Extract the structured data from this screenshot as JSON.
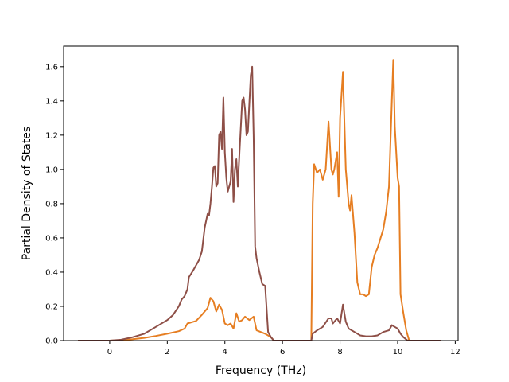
{
  "chart_data": {
    "type": "line",
    "title": "",
    "xlabel": "Frequency (THz)",
    "ylabel": "Partial Density of States",
    "xlim": [
      -1.6,
      12.1
    ],
    "ylim": [
      0.0,
      1.72
    ],
    "xticks": [
      0,
      2,
      4,
      6,
      8,
      10,
      12
    ],
    "yticks": [
      0.0,
      0.2,
      0.4,
      0.6,
      0.8,
      1.0,
      1.2,
      1.4,
      1.6
    ],
    "grid": false,
    "legend": "none",
    "series": [
      {
        "color": "#e67e22",
        "points": [
          [
            -1.1,
            0
          ],
          [
            0,
            0
          ],
          [
            0.4,
            0.003
          ],
          [
            0.8,
            0.008
          ],
          [
            1.2,
            0.016
          ],
          [
            1.6,
            0.027
          ],
          [
            2.0,
            0.04
          ],
          [
            2.4,
            0.055
          ],
          [
            2.6,
            0.07
          ],
          [
            2.7,
            0.1
          ],
          [
            3.0,
            0.115
          ],
          [
            3.2,
            0.15
          ],
          [
            3.4,
            0.19
          ],
          [
            3.5,
            0.25
          ],
          [
            3.6,
            0.23
          ],
          [
            3.7,
            0.17
          ],
          [
            3.8,
            0.21
          ],
          [
            3.9,
            0.18
          ],
          [
            4.0,
            0.1
          ],
          [
            4.1,
            0.09
          ],
          [
            4.2,
            0.1
          ],
          [
            4.3,
            0.07
          ],
          [
            4.4,
            0.16
          ],
          [
            4.5,
            0.11
          ],
          [
            4.6,
            0.12
          ],
          [
            4.7,
            0.14
          ],
          [
            4.85,
            0.12
          ],
          [
            5.0,
            0.14
          ],
          [
            5.1,
            0.06
          ],
          [
            5.4,
            0.04
          ],
          [
            5.6,
            0.02
          ],
          [
            5.7,
            0.0
          ],
          [
            5.9,
            0.0
          ],
          [
            7.0,
            0.0
          ],
          [
            7.05,
            0.8
          ],
          [
            7.1,
            1.03
          ],
          [
            7.2,
            0.98
          ],
          [
            7.3,
            1.0
          ],
          [
            7.4,
            0.94
          ],
          [
            7.5,
            1.0
          ],
          [
            7.6,
            1.28
          ],
          [
            7.7,
            1.0
          ],
          [
            7.75,
            0.97
          ],
          [
            7.8,
            1.0
          ],
          [
            7.9,
            1.1
          ],
          [
            7.95,
            0.84
          ],
          [
            8.0,
            1.3
          ],
          [
            8.1,
            1.57
          ],
          [
            8.2,
            1.0
          ],
          [
            8.3,
            0.8
          ],
          [
            8.35,
            0.76
          ],
          [
            8.4,
            0.85
          ],
          [
            8.5,
            0.63
          ],
          [
            8.6,
            0.34
          ],
          [
            8.7,
            0.27
          ],
          [
            8.8,
            0.27
          ],
          [
            8.9,
            0.26
          ],
          [
            9.0,
            0.27
          ],
          [
            9.1,
            0.43
          ],
          [
            9.2,
            0.5
          ],
          [
            9.3,
            0.54
          ],
          [
            9.5,
            0.65
          ],
          [
            9.6,
            0.75
          ],
          [
            9.7,
            0.9
          ],
          [
            9.8,
            1.4
          ],
          [
            9.85,
            1.64
          ],
          [
            9.9,
            1.25
          ],
          [
            10.0,
            0.95
          ],
          [
            10.05,
            0.9
          ],
          [
            10.1,
            0.27
          ],
          [
            10.2,
            0.16
          ],
          [
            10.3,
            0.06
          ],
          [
            10.4,
            0.0
          ],
          [
            11.5,
            0.0
          ]
        ]
      },
      {
        "color": "#8e4f47",
        "points": [
          [
            -1.1,
            0
          ],
          [
            0,
            0
          ],
          [
            0.4,
            0.005
          ],
          [
            0.8,
            0.02
          ],
          [
            1.2,
            0.04
          ],
          [
            1.6,
            0.08
          ],
          [
            2.0,
            0.12
          ],
          [
            2.2,
            0.15
          ],
          [
            2.4,
            0.2
          ],
          [
            2.5,
            0.24
          ],
          [
            2.6,
            0.26
          ],
          [
            2.7,
            0.3
          ],
          [
            2.75,
            0.37
          ],
          [
            2.9,
            0.41
          ],
          [
            3.1,
            0.47
          ],
          [
            3.2,
            0.52
          ],
          [
            3.3,
            0.66
          ],
          [
            3.4,
            0.74
          ],
          [
            3.45,
            0.73
          ],
          [
            3.5,
            0.8
          ],
          [
            3.55,
            0.9
          ],
          [
            3.6,
            1.01
          ],
          [
            3.65,
            1.02
          ],
          [
            3.7,
            0.9
          ],
          [
            3.75,
            0.92
          ],
          [
            3.8,
            1.2
          ],
          [
            3.85,
            1.22
          ],
          [
            3.9,
            1.12
          ],
          [
            3.95,
            1.42
          ],
          [
            4.0,
            1.1
          ],
          [
            4.05,
            0.95
          ],
          [
            4.1,
            0.87
          ],
          [
            4.2,
            0.93
          ],
          [
            4.25,
            1.12
          ],
          [
            4.3,
            0.81
          ],
          [
            4.35,
            1.0
          ],
          [
            4.4,
            1.06
          ],
          [
            4.45,
            0.9
          ],
          [
            4.5,
            1.07
          ],
          [
            4.6,
            1.4
          ],
          [
            4.65,
            1.42
          ],
          [
            4.7,
            1.35
          ],
          [
            4.75,
            1.2
          ],
          [
            4.8,
            1.22
          ],
          [
            4.9,
            1.55
          ],
          [
            4.95,
            1.6
          ],
          [
            5.0,
            1.2
          ],
          [
            5.05,
            0.55
          ],
          [
            5.1,
            0.48
          ],
          [
            5.2,
            0.4
          ],
          [
            5.3,
            0.33
          ],
          [
            5.4,
            0.32
          ],
          [
            5.5,
            0.05
          ],
          [
            5.6,
            0.02
          ],
          [
            5.7,
            0.0
          ],
          [
            5.9,
            0.0
          ],
          [
            7.0,
            0.0
          ],
          [
            7.05,
            0.04
          ],
          [
            7.2,
            0.06
          ],
          [
            7.4,
            0.08
          ],
          [
            7.6,
            0.13
          ],
          [
            7.7,
            0.13
          ],
          [
            7.75,
            0.1
          ],
          [
            7.9,
            0.13
          ],
          [
            8.0,
            0.1
          ],
          [
            8.1,
            0.21
          ],
          [
            8.2,
            0.11
          ],
          [
            8.3,
            0.07
          ],
          [
            8.5,
            0.05
          ],
          [
            8.7,
            0.03
          ],
          [
            8.9,
            0.025
          ],
          [
            9.1,
            0.025
          ],
          [
            9.3,
            0.03
          ],
          [
            9.5,
            0.05
          ],
          [
            9.7,
            0.06
          ],
          [
            9.8,
            0.09
          ],
          [
            9.9,
            0.08
          ],
          [
            10.0,
            0.07
          ],
          [
            10.1,
            0.04
          ],
          [
            10.2,
            0.02
          ],
          [
            10.35,
            0.0
          ],
          [
            11.5,
            0.0
          ]
        ]
      }
    ]
  }
}
